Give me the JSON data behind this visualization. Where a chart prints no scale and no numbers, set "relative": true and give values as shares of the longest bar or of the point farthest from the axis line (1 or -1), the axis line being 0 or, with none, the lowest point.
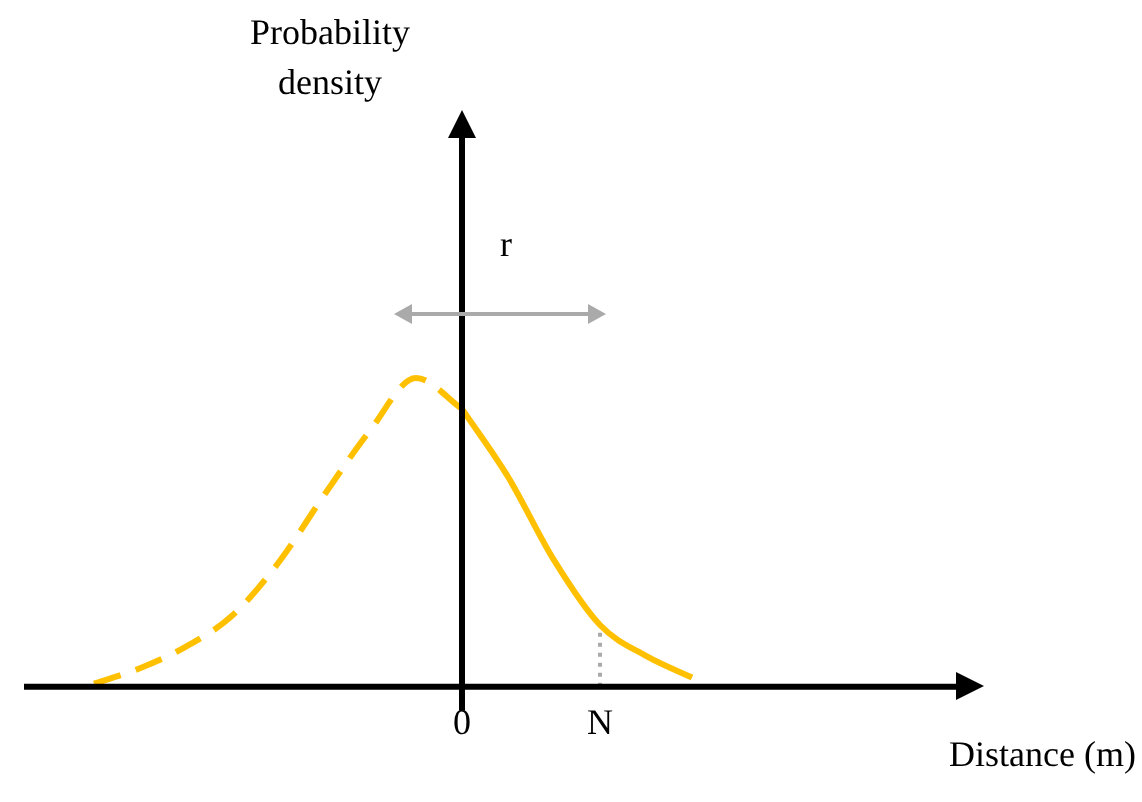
{
  "chart_data": {
    "type": "line",
    "relative": true,
    "xlabel": "Distance (m)",
    "categories": [
      null,
      null,
      null,
      null,
      null,
      null,
      null,
      null,
      null,
      "0",
      null,
      null,
      "N",
      null,
      null,
      null,
      null,
      null,
      null,
      null,
      null
    ],
    "series": [
      {
        "color": "#ffc000",
        "line_style": "dashed",
        "values": [
          null,
          0.01,
          0.06,
          0.13,
          0.23,
          0.4,
          0.62,
          0.83,
          1,
          0.9,
          null,
          null,
          null,
          null,
          null,
          null,
          null,
          null,
          null,
          null,
          null
        ]
      },
      {
        "color": "#ffc000",
        "line_style": "solid",
        "values": [
          null,
          null,
          null,
          null,
          null,
          null,
          null,
          null,
          null,
          0.9,
          0.68,
          0.41,
          0.2,
          0.1,
          0.03,
          null,
          null,
          null,
          null,
          null,
          null
        ]
      }
    ],
    "ref_lines": [
      {
        "axis": "x",
        "value": "N",
        "color": "#aaaaaa",
        "line_style": "dotted"
      }
    ],
    "annotations": [
      "Probability density",
      "r"
    ],
    "legend": false,
    "marker": "none"
  }
}
